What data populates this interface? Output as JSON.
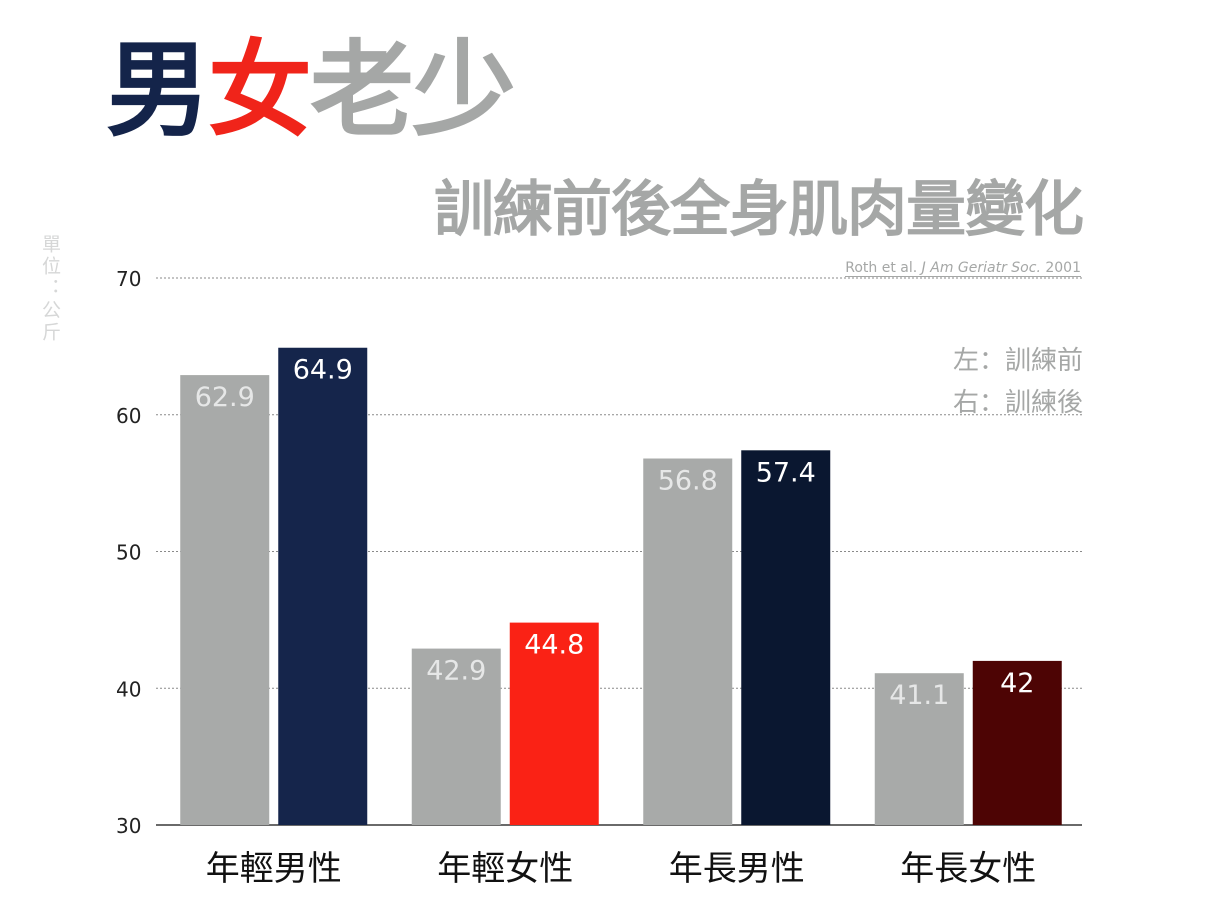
{
  "title": {
    "segments": [
      {
        "text": "男",
        "color": "#14244a"
      },
      {
        "text": "女",
        "color": "#f0241a"
      },
      {
        "text": "老少",
        "color": "#a5a7a6"
      }
    ]
  },
  "subtitle": "訓練前後全身肌肉量變化",
  "citation": {
    "authors": "Roth et al.",
    "journal": "J Am Geriatr Soc.",
    "year": "2001"
  },
  "unit_label": "單位：公斤",
  "legend": {
    "left": "左：訓練前",
    "right": "右：訓練後"
  },
  "chart_data": {
    "type": "bar",
    "title": "訓練前後全身肌肉量變化",
    "categories": [
      "年輕男性",
      "年輕女性",
      "年長男性",
      "年長女性"
    ],
    "series": [
      {
        "name": "訓練前",
        "values": [
          62.9,
          42.9,
          56.8,
          41.1
        ]
      },
      {
        "name": "訓練後",
        "values": [
          64.9,
          44.8,
          57.4,
          42
        ]
      }
    ],
    "bar_colors": {
      "before": [
        "#a8aaa9",
        "#a8aaa9",
        "#a8aaa9",
        "#a8aaa9"
      ],
      "after": [
        "#15254b",
        "#fa2215",
        "#0a1730",
        "#4d0404"
      ]
    },
    "value_label_colors": {
      "before": "#e6e7e7",
      "after": "#ffffff"
    },
    "ylabel": "單位：公斤",
    "ylim": [
      30,
      70
    ],
    "yticks": [
      30,
      40,
      50,
      60,
      70
    ],
    "grid": true,
    "legend_position": "top-right",
    "data_labels": true
  }
}
